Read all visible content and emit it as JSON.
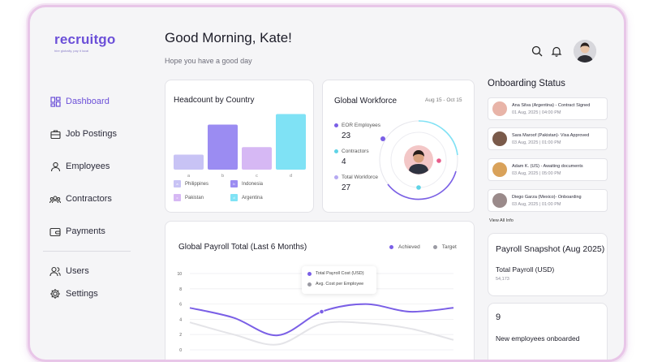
{
  "brand": {
    "name": "recruitgo",
    "tagline": "hire globally, pay it local"
  },
  "sidebar": {
    "items": [
      {
        "label": "Dashboard",
        "icon": "dashboard-icon",
        "active": true
      },
      {
        "label": "Job Postings",
        "icon": "briefcase-icon"
      },
      {
        "label": "Employees",
        "icon": "user-icon"
      },
      {
        "label": "Contractors",
        "icon": "group-icon"
      },
      {
        "label": "Payments",
        "icon": "wallet-icon"
      }
    ],
    "secondary": [
      {
        "label": "Users",
        "icon": "users-icon"
      },
      {
        "label": "Settings",
        "icon": "gear-icon"
      }
    ]
  },
  "header": {
    "greeting": "Good Morning, Kate!",
    "subtitle": "Hope you have a good day"
  },
  "headcount": {
    "title": "Headcount by Country",
    "bars": [
      {
        "label": "a",
        "value": 1,
        "color": "#c8c3f5"
      },
      {
        "label": "b",
        "value": 3,
        "color": "#9b8cf2"
      },
      {
        "label": "c",
        "value": 1.5,
        "color": "#d6b8f4"
      },
      {
        "label": "d",
        "value": 3.7,
        "color": "#7fe2f5"
      }
    ],
    "legend": [
      {
        "key": "a",
        "name": "Philippines",
        "color": "#c8c3f5"
      },
      {
        "key": "b",
        "name": "Indonesia",
        "color": "#9b8cf2"
      },
      {
        "key": "c",
        "name": "Pakistan",
        "color": "#d6b8f4"
      },
      {
        "key": "d",
        "name": "Argentina",
        "color": "#7fe2f5"
      }
    ]
  },
  "workforce": {
    "title": "Global Workforce",
    "range": "Aug 15 - Oct 15",
    "stats": [
      {
        "label": "EOR Employees",
        "value": "23",
        "color": "#7a5fe6"
      },
      {
        "label": "Contractors",
        "value": "4",
        "color": "#5fd3e6"
      },
      {
        "label": "Total Workforce",
        "value": "27",
        "color": "#b6a9f2"
      }
    ]
  },
  "payroll": {
    "title": "Global Payroll Total (Last 6 Months)",
    "legend": [
      {
        "label": "Achieved",
        "color": "#7a5fe6"
      },
      {
        "label": "Target",
        "color": "#9a9aa3"
      }
    ],
    "tooltip": [
      {
        "label": "Total Payroll Cost (USD)",
        "color": "#7a5fe6"
      },
      {
        "label": "Avg. Cost per Employee",
        "color": "#9a9aa3"
      }
    ],
    "y_ticks": [
      "10",
      "8",
      "6",
      "4",
      "2",
      "0"
    ]
  },
  "chart_data": {
    "type": "line",
    "title": "Global Payroll Total (Last 6 Months)",
    "ylim": [
      0,
      10
    ],
    "y_ticks": [
      0,
      2,
      4,
      6,
      8,
      10
    ],
    "series": [
      {
        "name": "Achieved",
        "values": [
          5.5,
          4.2,
          1.9,
          5.0,
          6.0,
          5.0,
          5.5
        ]
      },
      {
        "name": "Target",
        "values": [
          3.6,
          2.0,
          0.7,
          3.4,
          3.5,
          2.8,
          1.3
        ]
      }
    ]
  },
  "onboarding": {
    "title": "Onboarding Status",
    "items": [
      {
        "name": "Ana Silva (Argentina) - Contract Signed",
        "date": "01 Aug, 2025 | 04:00 PM",
        "avatar_color": "#e8b4a8"
      },
      {
        "name": "Sara Maroof (Pakistan)- Visa Approved",
        "date": "03 Aug, 2025 | 01:00 PM",
        "avatar_color": "#7a5a4a"
      },
      {
        "name": "Adam K. (US) - Awaiting documents",
        "date": "03 Aug, 2025 | 05:00 PM",
        "avatar_color": "#d9a25a"
      },
      {
        "name": "Diego Garza (Mexico)- Onboarding",
        "date": "03 Aug, 2025 | 01:00 PM",
        "avatar_color": "#9a8a8a"
      }
    ],
    "view_all": "View All Info"
  },
  "snapshot": {
    "title": "Payroll Snapshot (Aug 2025)",
    "label": "Total Payroll (USD)",
    "value": "54,173"
  },
  "new_employees": {
    "count": "9",
    "label": "New employees onboarded"
  }
}
